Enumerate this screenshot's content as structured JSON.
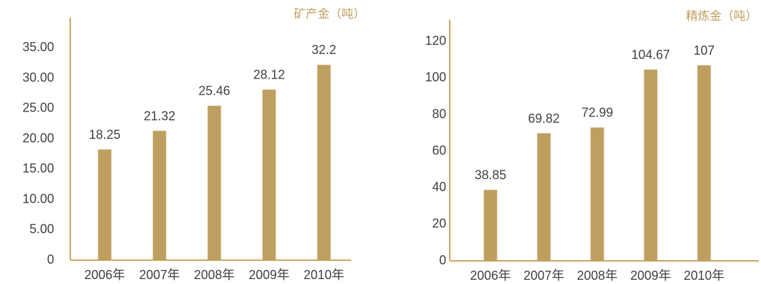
{
  "chart_data": [
    {
      "type": "bar",
      "y_label": "矿产金（吨）",
      "categories": [
        "2006年",
        "2007年",
        "2008年",
        "2009年",
        "2010年"
      ],
      "values": [
        18.25,
        21.32,
        25.46,
        28.12,
        32.2
      ],
      "color": "#bf9f5f",
      "ylim": [
        0,
        40
      ],
      "yticks": [
        0,
        {
          "value": 5,
          "label": "5.00"
        },
        {
          "value": 10,
          "label": "10.00"
        },
        {
          "value": 15,
          "label": "15.00"
        },
        {
          "value": 20,
          "label": "20.00"
        },
        {
          "value": 25,
          "label": "25.00"
        },
        {
          "value": 30,
          "label": "30.00"
        },
        {
          "value": 35,
          "label": "35.00"
        }
      ],
      "grid": false
    },
    {
      "type": "bar",
      "y_label": "精炼金（吨）",
      "categories": [
        "2006年",
        "2007年",
        "2008年",
        "2009年",
        "2010年"
      ],
      "values": [
        38.85,
        69.82,
        72.99,
        104.67,
        107
      ],
      "color": "#bf9f5f",
      "ylim": [
        0,
        132
      ],
      "yticks": [
        0,
        20,
        40,
        60,
        80,
        100,
        120
      ],
      "grid": false
    }
  ]
}
